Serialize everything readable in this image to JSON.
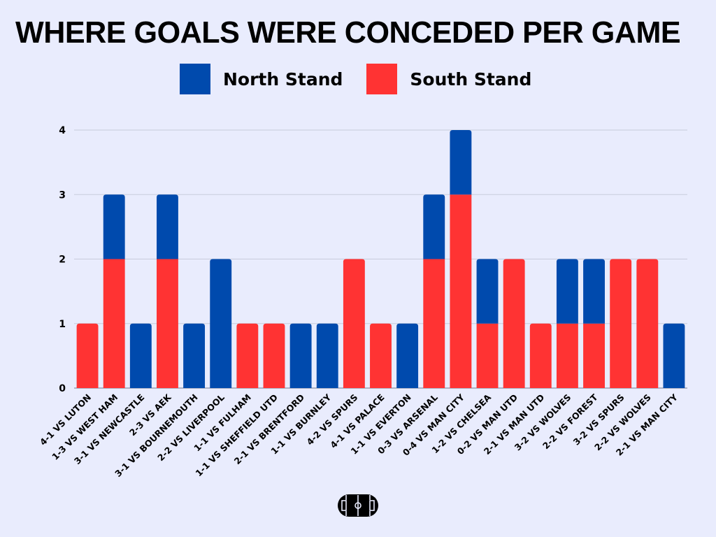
{
  "chart_data": {
    "type": "bar",
    "stacked": true,
    "title": "WHERE GOALS WERE CONCEDED PER GAME",
    "xlabel": "",
    "ylabel": "",
    "ylim": [
      0,
      4
    ],
    "yticks": [
      0,
      1,
      2,
      3,
      4
    ],
    "grid": true,
    "legend_position": "top-center",
    "categories": [
      "4-1 VS LUTON",
      "1-3 VS WEST HAM",
      "3-1 VS NEWCASTLE",
      "2-3 VS AEK",
      "3-1 VS BOURNEMOUTH",
      "2-2 VS LIVERPOOL",
      "1-1 VS FULHAM",
      "1-1 VS SHEFFIELD UTD",
      "2-1 VS BRENTFORD",
      "1-1 VS BURNLEY",
      "4-2 VS SPURS",
      "4-1 VS PALACE",
      "1-1 VS EVERTON",
      "0-3 VS ARSENAL",
      "0-4 VS MAN CITY",
      "1-2 VS CHELSEA",
      "0-2 VS MAN UTD",
      "2-1 VS MAN UTD",
      "3-2 VS WOLVES",
      "2-2 VS FOREST",
      "3-2 VS SPURS",
      "2-2 VS WOLVES",
      "2-1 VS MAN CITY"
    ],
    "series": [
      {
        "name": "South Stand",
        "color": "#ff3333",
        "values": [
          1,
          2,
          0,
          2,
          0,
          0,
          1,
          1,
          0,
          0,
          2,
          1,
          0,
          2,
          3,
          1,
          2,
          1,
          1,
          1,
          2,
          2,
          0
        ]
      },
      {
        "name": "North Stand",
        "color": "#004aad",
        "values": [
          0,
          1,
          1,
          1,
          1,
          2,
          0,
          0,
          1,
          1,
          0,
          0,
          1,
          1,
          1,
          1,
          0,
          0,
          1,
          1,
          0,
          0,
          1
        ]
      }
    ]
  },
  "legend": {
    "items": [
      {
        "label": "North Stand",
        "color": "#004aad"
      },
      {
        "label": "South Stand",
        "color": "#ff3333"
      }
    ]
  },
  "footer": {
    "icon": "football-pitch-icon"
  }
}
